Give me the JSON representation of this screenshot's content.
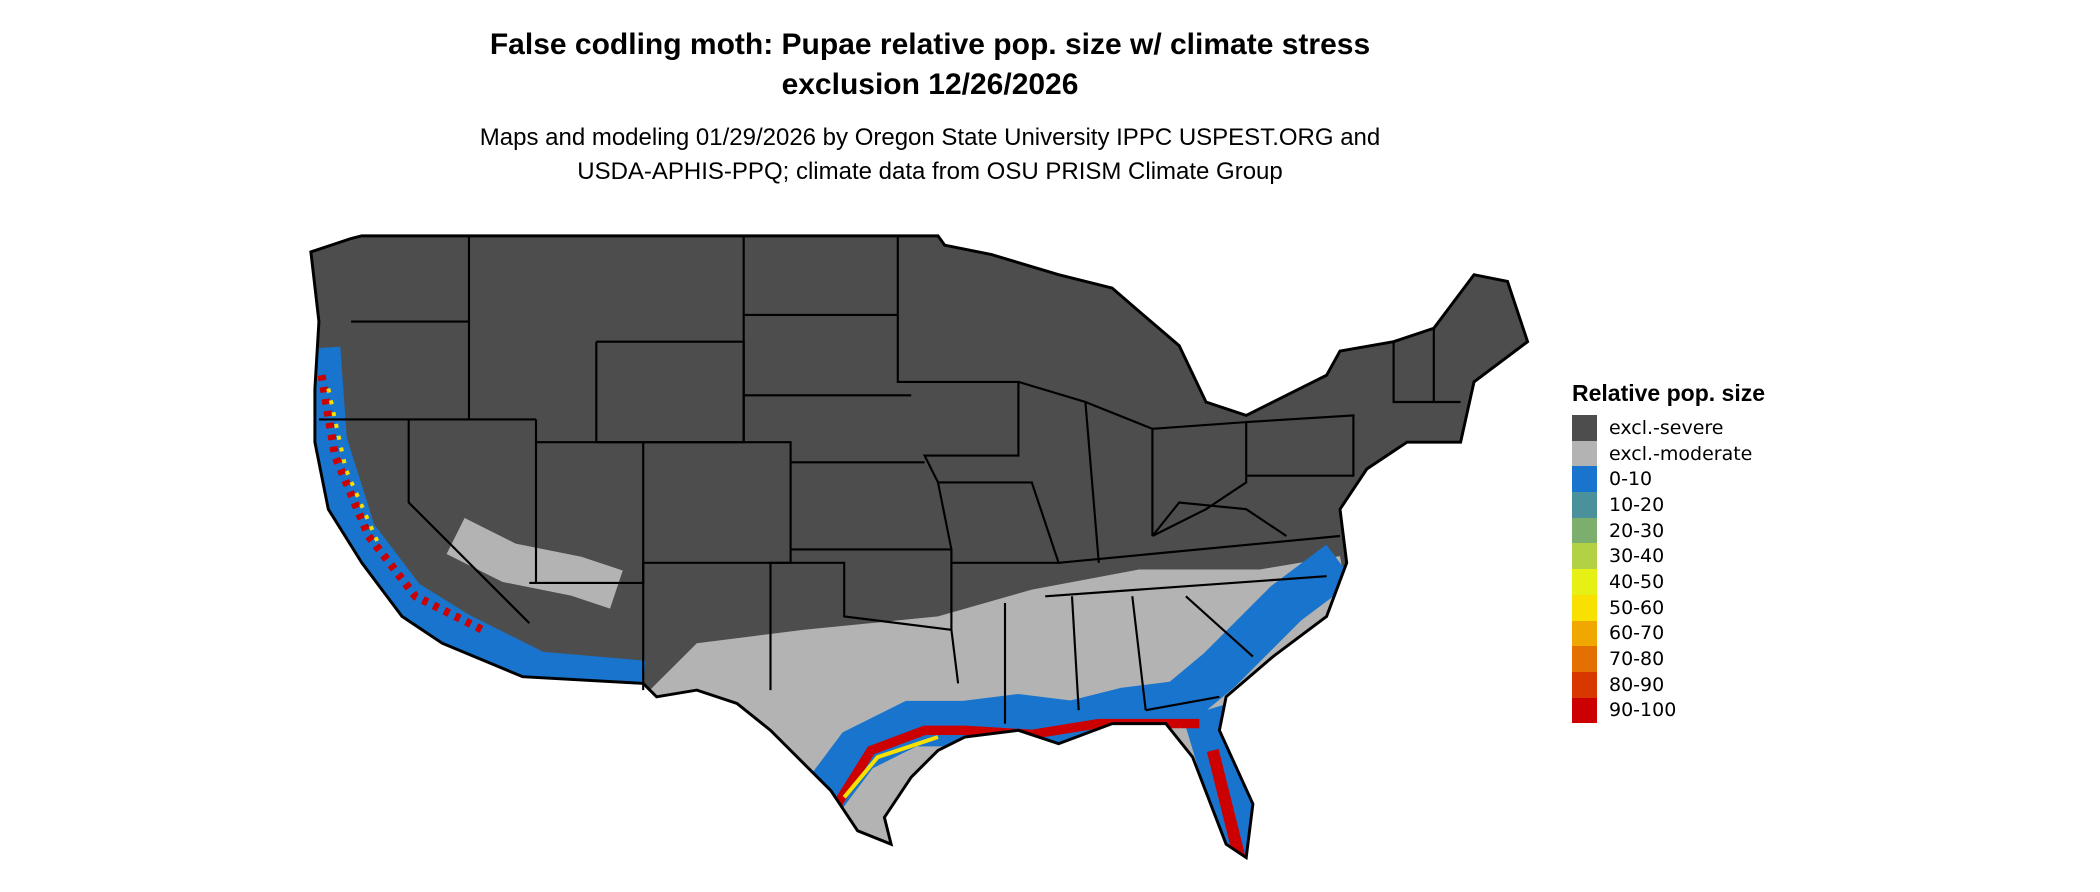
{
  "title_line1": "False codling moth: Pupae relative pop. size w/ climate stress",
  "title_line2": "exclusion 12/26/2026",
  "subtitle_line1": "Maps and modeling 01/29/2026 by Oregon State University IPPC USPEST.ORG and",
  "subtitle_line2": "USDA-APHIS-PPQ; climate data from OSU PRISM Climate Group",
  "chart_data": {
    "type": "heatmap",
    "region": "Contiguous United States",
    "legend": {
      "title": "Relative pop. size",
      "placement": "right",
      "entries": [
        {
          "label": "excl.-severe",
          "color": "#4d4d4d"
        },
        {
          "label": "excl.-moderate",
          "color": "#b3b3b3"
        },
        {
          "label": "0-10",
          "color": "#1874cd"
        },
        {
          "label": "10-20",
          "color": "#4a919b"
        },
        {
          "label": "20-30",
          "color": "#7caf6e"
        },
        {
          "label": "30-40",
          "color": "#b2d144"
        },
        {
          "label": "40-50",
          "color": "#e6f014"
        },
        {
          "label": "50-60",
          "color": "#f8e000"
        },
        {
          "label": "60-70",
          "color": "#f0a800"
        },
        {
          "label": "70-80",
          "color": "#e37000"
        },
        {
          "label": "80-90",
          "color": "#d83800"
        },
        {
          "label": "90-100",
          "color": "#cc0000"
        }
      ]
    }
  }
}
